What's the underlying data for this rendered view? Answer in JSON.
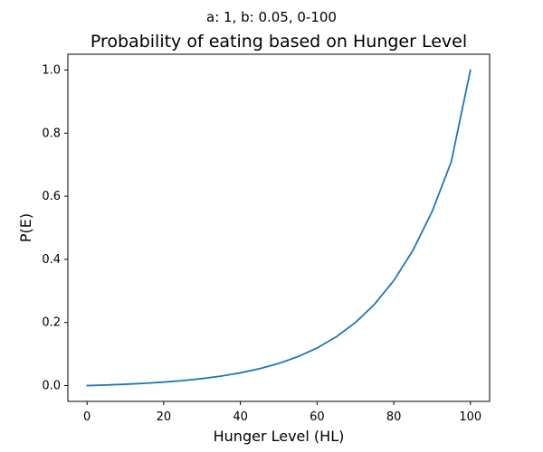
{
  "figure": {
    "suptitle": "a: 1, b: 0.05, 0-100"
  },
  "chart_data": {
    "type": "line",
    "title": "Probability of eating based on Hunger Level",
    "xlabel": "Hunger Level (HL)",
    "ylabel": "P(E)",
    "xlim": [
      -5,
      105
    ],
    "ylim": [
      -0.05,
      1.05
    ],
    "xticks": [
      0,
      20,
      40,
      60,
      80,
      100
    ],
    "yticks": [
      0.0,
      0.2,
      0.4,
      0.6,
      0.8,
      1.0
    ],
    "xtick_labels": [
      "0",
      "20",
      "40",
      "60",
      "80",
      "100"
    ],
    "ytick_labels": [
      "0.0",
      "0.2",
      "0.4",
      "0.6",
      "0.8",
      "1.0"
    ],
    "grid": false,
    "series": [
      {
        "color": "#1f77b4",
        "x": [
          0,
          5,
          10,
          15,
          20,
          25,
          30,
          35,
          40,
          45,
          50,
          55,
          60,
          65,
          70,
          75,
          80,
          85,
          90,
          95,
          100
        ],
        "y": [
          0.0,
          0.0019,
          0.0043,
          0.0073,
          0.0111,
          0.016,
          0.0222,
          0.0302,
          0.0404,
          0.0535,
          0.0702,
          0.0917,
          0.1192,
          0.1545,
          0.1998,
          0.258,
          0.3326,
          0.4285,
          0.5515,
          0.7094,
          1.0
        ]
      }
    ]
  }
}
